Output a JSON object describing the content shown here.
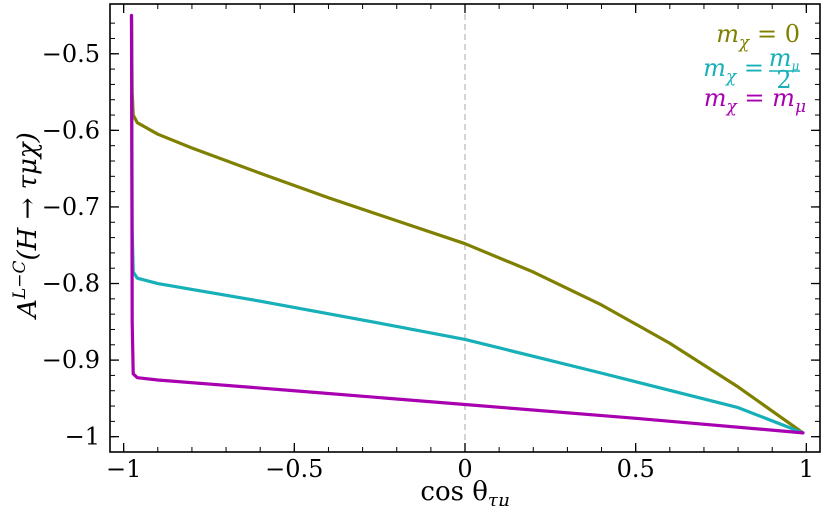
{
  "chart_data": {
    "type": "line",
    "xlabel": "cos θ_τμ",
    "ylabel": "A^{L−C}(H → τμχ)",
    "xlim": [
      -1.04,
      1.04
    ],
    "ylim": [
      -1.02,
      -0.435
    ],
    "x_ticks": [
      -1,
      -0.5,
      0,
      0.5,
      1
    ],
    "x_tick_labels": [
      "−1",
      "−0.5",
      "0",
      "0.5",
      "1"
    ],
    "y_ticks": [
      -1,
      -0.9,
      -0.8,
      -0.7,
      -0.6,
      -0.5
    ],
    "y_tick_labels": [
      "−1",
      "−0.9",
      "−0.8",
      "−0.7",
      "−0.6",
      "−0.5"
    ],
    "vline_x": 0,
    "grid": false,
    "legend_position": "top-right",
    "series": [
      {
        "name": "m_χ = 0",
        "color": "#808000",
        "points": [
          [
            -0.977,
            -0.45
          ],
          [
            -0.975,
            -0.55
          ],
          [
            -0.972,
            -0.58
          ],
          [
            -0.96,
            -0.59
          ],
          [
            -0.9,
            -0.605
          ],
          [
            -0.8,
            -0.623
          ],
          [
            -0.6,
            -0.656
          ],
          [
            -0.4,
            -0.688
          ],
          [
            -0.2,
            -0.718
          ],
          [
            0,
            -0.748
          ],
          [
            0.2,
            -0.785
          ],
          [
            0.4,
            -0.828
          ],
          [
            0.6,
            -0.878
          ],
          [
            0.8,
            -0.935
          ],
          [
            0.99,
            -0.995
          ]
        ]
      },
      {
        "name": "m_χ = m_μ/2",
        "color": "#17b0b8",
        "points": [
          [
            -0.977,
            -0.45
          ],
          [
            -0.975,
            -0.73
          ],
          [
            -0.972,
            -0.785
          ],
          [
            -0.96,
            -0.793
          ],
          [
            -0.9,
            -0.8
          ],
          [
            -0.6,
            -0.823
          ],
          [
            -0.2,
            -0.856
          ],
          [
            0,
            -0.873
          ],
          [
            0.4,
            -0.917
          ],
          [
            0.8,
            -0.962
          ],
          [
            0.99,
            -0.995
          ]
        ]
      },
      {
        "name": "m_χ = m_μ",
        "color": "#a800b0",
        "points": [
          [
            -0.977,
            -0.45
          ],
          [
            -0.975,
            -0.85
          ],
          [
            -0.972,
            -0.918
          ],
          [
            -0.96,
            -0.923
          ],
          [
            -0.9,
            -0.926
          ],
          [
            -0.5,
            -0.94
          ],
          [
            0,
            -0.958
          ],
          [
            0.5,
            -0.976
          ],
          [
            0.99,
            -0.995
          ]
        ]
      }
    ]
  },
  "legend": {
    "items": [
      {
        "base": "m",
        "sub": "χ",
        "eq": " = ",
        "rhs": "0"
      },
      {
        "base": "m",
        "sub": "χ",
        "eq": " = ",
        "frac_num": "m",
        "frac_num_sub": "μ",
        "frac_den": "2"
      },
      {
        "base": "m",
        "sub": "χ",
        "eq": " = ",
        "rhs": "m",
        "rhs_sub": "μ"
      }
    ]
  },
  "axes": {
    "xlabel_main": "cos θ",
    "xlabel_sub": "τμ",
    "ylabel_main": "A",
    "ylabel_sup": "L−C",
    "ylabel_rest": "(H → τμχ)"
  }
}
